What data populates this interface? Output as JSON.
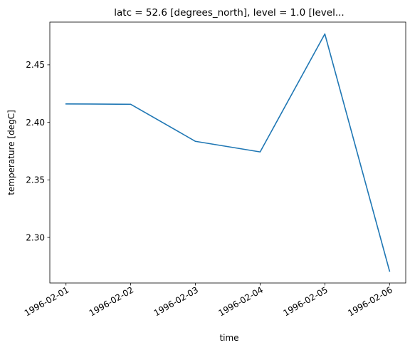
{
  "chart_data": {
    "type": "line",
    "title": "latc = 52.6 [degrees_north], level = 1.0 [level...",
    "xlabel": "time",
    "ylabel": "temperature [degC]",
    "x": [
      "1996-02-01",
      "1996-02-02",
      "1996-02-03",
      "1996-02-04",
      "1996-02-05",
      "1996-02-06"
    ],
    "y": [
      2.416,
      2.4157,
      2.3835,
      2.3743,
      2.4768,
      2.2707
    ],
    "xticks": [
      "1996-02-01",
      "1996-02-02",
      "1996-02-03",
      "1996-02-04",
      "1996-02-05",
      "1996-02-06"
    ],
    "yticks": [
      "2.30",
      "2.35",
      "2.40",
      "2.45"
    ],
    "yticks_values": [
      2.3,
      2.35,
      2.4,
      2.45
    ],
    "ylim": [
      2.2604,
      2.4871
    ],
    "xlim_days": [
      -0.25,
      5.25
    ],
    "grid": false,
    "legend": "none",
    "line_color": "#1f77b4"
  }
}
